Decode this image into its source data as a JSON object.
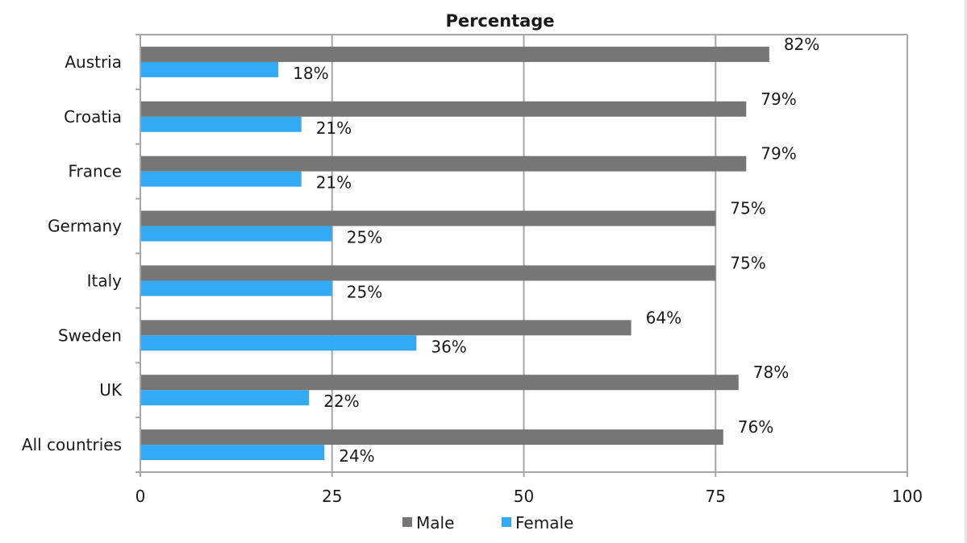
{
  "chart_data": {
    "type": "bar",
    "orientation": "horizontal",
    "title": "Percentage",
    "xlabel": "",
    "ylabel": "",
    "xlim": [
      0,
      100
    ],
    "x_ticks": [
      "0",
      "25",
      "50",
      "75",
      "100"
    ],
    "grid": true,
    "legend_position": "bottom",
    "categories": [
      "Austria",
      "Croatia",
      "France",
      "Germany",
      "Italy",
      "Sweden",
      "UK",
      "All  countries"
    ],
    "series": [
      {
        "name": "Male",
        "color": "#767676",
        "values": [
          82,
          79,
          79,
          75,
          75,
          64,
          78,
          76
        ],
        "labels": [
          "82%",
          "79%",
          "79%",
          "75%",
          "75%",
          "64%",
          "78%",
          "76%"
        ]
      },
      {
        "name": "Female",
        "color": "#33aaf5",
        "values": [
          18,
          21,
          21,
          25,
          25,
          36,
          22,
          24
        ],
        "labels": [
          "18%",
          "21%",
          "21%",
          "25%",
          "25%",
          "36%",
          "22%",
          "24%"
        ]
      }
    ]
  }
}
